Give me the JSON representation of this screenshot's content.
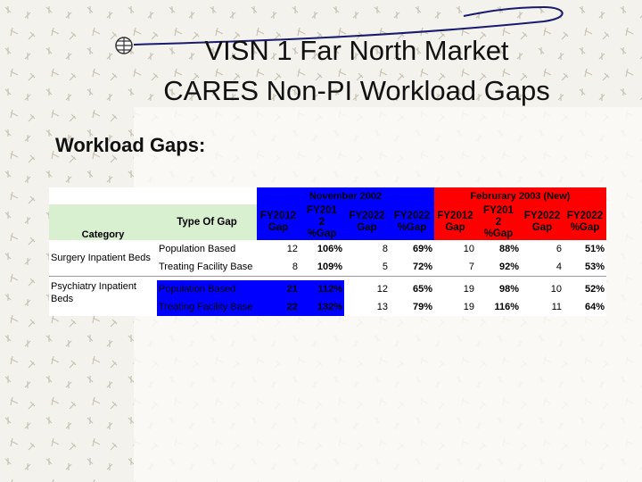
{
  "title": {
    "line1": "VISN 1 Far North Market",
    "line2": "CARES Non-PI Workload Gaps"
  },
  "subtitle": "Workload Gaps:",
  "colors": {
    "nov_2002_header": "#0000ff",
    "feb_2003_header": "#ff0000",
    "category_header": "#d8f0d0"
  },
  "table": {
    "group1": "November 2002",
    "group2": "Februrary 2003 (New)",
    "headers": [
      "Category",
      "Type Of Gap",
      [
        "FY2012",
        "Gap"
      ],
      [
        "FY201",
        "2",
        "%Gap"
      ],
      [
        "FY2022",
        "Gap"
      ],
      [
        "FY2022",
        "%Gap"
      ],
      [
        "FY2012",
        "Gap"
      ],
      [
        "FY201",
        "2",
        "%Gap"
      ],
      [
        "FY2022",
        "Gap"
      ],
      [
        "FY2022",
        "%Gap"
      ]
    ],
    "rows": [
      {
        "category": "Surgery Inpatient Beds",
        "type": "Population Based",
        "v": [
          "12",
          "106%",
          "8",
          "69%",
          "10",
          "88%",
          "6",
          "51%"
        ]
      },
      {
        "category": "",
        "type": "Treating Facility Base",
        "v": [
          "8",
          "109%",
          "5",
          "72%",
          "7",
          "92%",
          "4",
          "53%"
        ]
      },
      {
        "category": "Psychiatry Inpatient Beds",
        "type": "Population Based",
        "v": [
          "21",
          "112%",
          "12",
          "65%",
          "19",
          "98%",
          "10",
          "52%"
        ]
      },
      {
        "category": "",
        "type": "Treating Facility Base",
        "v": [
          "22",
          "132%",
          "13",
          "79%",
          "19",
          "116%",
          "11",
          "64%"
        ]
      }
    ]
  }
}
